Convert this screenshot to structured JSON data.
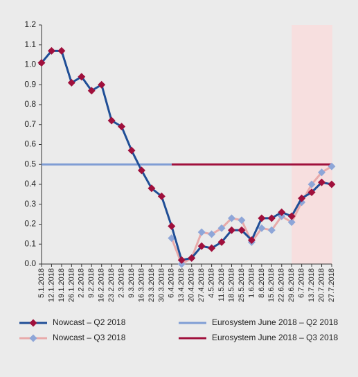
{
  "chart_data": {
    "type": "line",
    "categories": [
      "5.1.2018",
      "12.1.2018",
      "19.1.2018",
      "26.1.2018",
      "2.2.2018",
      "9.2.2018",
      "16.2.2018",
      "23.2.2018",
      "2.3.2018",
      "9.3.2018",
      "16.3.2018",
      "23.3.2018",
      "30.3.2018",
      "6.4.2018",
      "13.4.2018",
      "20.4.2018",
      "27.4.2018",
      "4.5.2018",
      "11.5.2018",
      "18.5.2018",
      "25.5.2018",
      "1.6.2018",
      "8.6.2018",
      "15.6.2018",
      "22.6.2018",
      "29.6.2018",
      "6.7.2018",
      "13.7.2018",
      "20.7.2018",
      "27.7.2018"
    ],
    "series": [
      {
        "name": "Nowcast – Q2 2018",
        "color": "#1f4e96",
        "marker_color": "#a0103c",
        "values": [
          1.01,
          1.07,
          1.07,
          0.91,
          0.94,
          0.87,
          0.9,
          0.72,
          0.69,
          0.57,
          0.47,
          0.38,
          0.34,
          0.19,
          0.02,
          0.03,
          0.09,
          0.08,
          0.11,
          0.17,
          0.17,
          0.12,
          0.23,
          0.23,
          0.26,
          0.24,
          0.33,
          0.36,
          0.41,
          0.4
        ]
      },
      {
        "name": "Nowcast – Q3 2018",
        "color": "#e8aaaa",
        "marker_color": "#8ea6d8",
        "values": [
          null,
          null,
          null,
          null,
          null,
          null,
          null,
          null,
          null,
          null,
          null,
          null,
          null,
          0.13,
          0.0,
          0.03,
          0.16,
          0.15,
          0.18,
          0.23,
          0.22,
          0.11,
          0.18,
          0.17,
          0.24,
          0.21,
          0.31,
          0.4,
          0.46,
          0.49
        ]
      },
      {
        "name": "Eurosystem June 2018 – Q2 2018",
        "color": "#7f9dd4",
        "values": [
          0.5,
          0.5,
          0.5,
          0.5,
          0.5,
          0.5,
          0.5,
          0.5,
          0.5,
          0.5,
          0.5,
          0.5,
          0.5,
          0.5,
          null,
          null,
          null,
          null,
          null,
          null,
          null,
          null,
          null,
          null,
          null,
          null,
          null,
          null,
          null,
          null
        ]
      },
      {
        "name": "Eurosystem June 2018 – Q3 2018",
        "color": "#a0103c",
        "values": [
          null,
          null,
          null,
          null,
          null,
          null,
          null,
          null,
          null,
          null,
          null,
          null,
          null,
          0.5,
          0.5,
          0.5,
          0.5,
          0.5,
          0.5,
          0.5,
          0.5,
          0.5,
          0.5,
          0.5,
          0.5,
          0.5,
          0.5,
          0.5,
          0.5,
          0.5
        ]
      }
    ],
    "ylim": [
      0,
      1.2
    ],
    "yticks": [
      {
        "value": 0,
        "label": "0.0"
      },
      0.1,
      0.2,
      0.3,
      0.4,
      0.5,
      0.6,
      0.7,
      0.8,
      0.9,
      {
        "value": 1,
        "label": "1.0"
      },
      1.1,
      1.2
    ],
    "grid": false,
    "shaded_range": [
      "29.6.2018",
      "27.7.2018"
    ],
    "shade_color": "#f7dfdf",
    "legend": "bottom"
  }
}
